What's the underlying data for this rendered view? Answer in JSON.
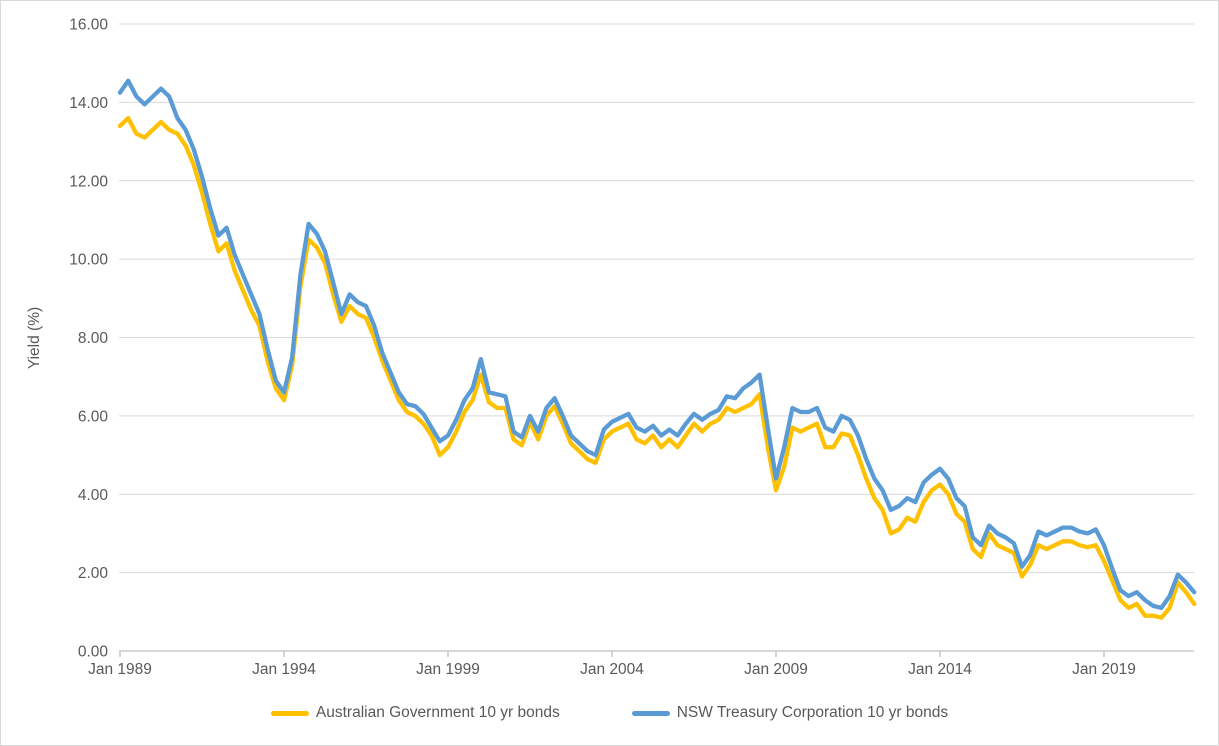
{
  "chart": {
    "title": "",
    "y_axis": {
      "title": "Yield (%)",
      "tick_labels": [
        "16.00",
        "14.00",
        "12.00",
        "10.00",
        "8.00",
        "6.00",
        "4.00",
        "2.00",
        "0.00"
      ],
      "tick_values": [
        16,
        14,
        12,
        10,
        8,
        6,
        4,
        2,
        0
      ],
      "min": 0,
      "max": 16,
      "step": 2
    },
    "x_axis": {
      "tick_labels": [
        "Jan 1989",
        "Jan 1994",
        "Jan 1999",
        "Jan 2004",
        "Jan 2009",
        "Jan 2014",
        "Jan 2019"
      ],
      "tick_years": [
        1989,
        1994,
        1999,
        2004,
        2009,
        2014,
        2019
      ]
    },
    "colors": {
      "gridline": "#d9d9d9",
      "axis_line": "#bfbfbf",
      "text": "#595959",
      "background": "#ffffff",
      "series_australian_government": "#FFC000",
      "series_nsw_tcorp": "#5B9BD5"
    },
    "legend": {
      "position": "bottom-center",
      "items": [
        {
          "label": "Australian Government 10 yr bonds",
          "color": "#FFC000"
        },
        {
          "label": "NSW Treasury Corporation 10 yr bonds",
          "color": "#5B9BD5"
        }
      ]
    }
  },
  "chart_data": {
    "type": "line",
    "title": "",
    "xlabel": "",
    "ylabel": "Yield (%)",
    "ylim": [
      0,
      16
    ],
    "grid": "horizontal",
    "legend_position": "bottom",
    "x_format": "decimal_year",
    "frequency": "quarterly",
    "x_range_dates": [
      "Jan 1989",
      "Oct 2021"
    ],
    "x": [
      1989.0,
      1989.25,
      1989.5,
      1989.75,
      1990.0,
      1990.25,
      1990.5,
      1990.75,
      1991.0,
      1991.25,
      1991.5,
      1991.75,
      1992.0,
      1992.25,
      1992.5,
      1992.75,
      1993.0,
      1993.25,
      1993.5,
      1993.75,
      1994.0,
      1994.25,
      1994.5,
      1994.75,
      1995.0,
      1995.25,
      1995.5,
      1995.75,
      1996.0,
      1996.25,
      1996.5,
      1996.75,
      1997.0,
      1997.25,
      1997.5,
      1997.75,
      1998.0,
      1998.25,
      1998.5,
      1998.75,
      1999.0,
      1999.25,
      1999.5,
      1999.75,
      2000.0,
      2000.25,
      2000.5,
      2000.75,
      2001.0,
      2001.25,
      2001.5,
      2001.75,
      2002.0,
      2002.25,
      2002.5,
      2002.75,
      2003.0,
      2003.25,
      2003.5,
      2003.75,
      2004.0,
      2004.25,
      2004.5,
      2004.75,
      2005.0,
      2005.25,
      2005.5,
      2005.75,
      2006.0,
      2006.25,
      2006.5,
      2006.75,
      2007.0,
      2007.25,
      2007.5,
      2007.75,
      2008.0,
      2008.25,
      2008.5,
      2008.75,
      2009.0,
      2009.25,
      2009.5,
      2009.75,
      2010.0,
      2010.25,
      2010.5,
      2010.75,
      2011.0,
      2011.25,
      2011.5,
      2011.75,
      2012.0,
      2012.25,
      2012.5,
      2012.75,
      2013.0,
      2013.25,
      2013.5,
      2013.75,
      2014.0,
      2014.25,
      2014.5,
      2014.75,
      2015.0,
      2015.25,
      2015.5,
      2015.75,
      2016.0,
      2016.25,
      2016.5,
      2016.75,
      2017.0,
      2017.25,
      2017.5,
      2017.75,
      2018.0,
      2018.25,
      2018.5,
      2018.75,
      2019.0,
      2019.25,
      2019.5,
      2019.75,
      2020.0,
      2020.25,
      2020.5,
      2020.75,
      2021.0,
      2021.25,
      2021.5,
      2021.75
    ],
    "series": [
      {
        "name": "Australian Government 10 yr bonds",
        "color": "#FFC000",
        "values": [
          13.4,
          13.6,
          13.2,
          13.1,
          13.3,
          13.5,
          13.3,
          13.2,
          12.9,
          12.4,
          11.7,
          10.9,
          10.2,
          10.4,
          9.7,
          9.2,
          8.7,
          8.3,
          7.4,
          6.7,
          6.4,
          7.3,
          9.3,
          10.5,
          10.3,
          9.9,
          9.1,
          8.4,
          8.8,
          8.6,
          8.5,
          8.0,
          7.4,
          6.9,
          6.4,
          6.1,
          6.0,
          5.8,
          5.5,
          5.0,
          5.2,
          5.6,
          6.1,
          6.4,
          7.05,
          6.35,
          6.2,
          6.2,
          5.4,
          5.25,
          5.85,
          5.4,
          6.0,
          6.25,
          5.8,
          5.3,
          5.1,
          4.9,
          4.8,
          5.4,
          5.6,
          5.7,
          5.8,
          5.4,
          5.3,
          5.5,
          5.2,
          5.4,
          5.2,
          5.5,
          5.8,
          5.6,
          5.8,
          5.9,
          6.2,
          6.1,
          6.2,
          6.3,
          6.55,
          5.2,
          4.1,
          4.7,
          5.7,
          5.6,
          5.7,
          5.8,
          5.2,
          5.2,
          5.55,
          5.5,
          5.0,
          4.4,
          3.9,
          3.6,
          3.0,
          3.1,
          3.4,
          3.3,
          3.8,
          4.1,
          4.25,
          4.0,
          3.5,
          3.3,
          2.6,
          2.4,
          3.0,
          2.7,
          2.6,
          2.5,
          1.9,
          2.2,
          2.7,
          2.6,
          2.7,
          2.8,
          2.8,
          2.7,
          2.65,
          2.7,
          2.3,
          1.8,
          1.3,
          1.1,
          1.2,
          0.9,
          0.9,
          0.85,
          1.1,
          1.75,
          1.5,
          1.2
        ]
      },
      {
        "name": "NSW Treasury Corporation 10 yr bonds",
        "color": "#5B9BD5",
        "values": [
          14.25,
          14.55,
          14.15,
          13.95,
          14.15,
          14.35,
          14.15,
          13.6,
          13.3,
          12.8,
          12.1,
          11.3,
          10.6,
          10.8,
          10.1,
          9.6,
          9.1,
          8.6,
          7.7,
          6.9,
          6.6,
          7.5,
          9.6,
          10.9,
          10.65,
          10.2,
          9.4,
          8.6,
          9.1,
          8.9,
          8.8,
          8.3,
          7.6,
          7.1,
          6.6,
          6.3,
          6.25,
          6.05,
          5.7,
          5.35,
          5.5,
          5.9,
          6.4,
          6.7,
          7.45,
          6.6,
          6.55,
          6.5,
          5.6,
          5.45,
          6.0,
          5.6,
          6.2,
          6.45,
          6.0,
          5.5,
          5.3,
          5.1,
          5.0,
          5.65,
          5.85,
          5.95,
          6.05,
          5.7,
          5.6,
          5.75,
          5.5,
          5.65,
          5.5,
          5.8,
          6.05,
          5.9,
          6.05,
          6.15,
          6.5,
          6.45,
          6.7,
          6.85,
          7.05,
          5.7,
          4.4,
          5.2,
          6.2,
          6.1,
          6.1,
          6.2,
          5.7,
          5.6,
          6.0,
          5.9,
          5.5,
          4.9,
          4.4,
          4.1,
          3.6,
          3.7,
          3.9,
          3.8,
          4.3,
          4.5,
          4.65,
          4.4,
          3.9,
          3.7,
          2.9,
          2.7,
          3.2,
          3.0,
          2.9,
          2.75,
          2.15,
          2.45,
          3.05,
          2.95,
          3.05,
          3.15,
          3.15,
          3.05,
          3.0,
          3.1,
          2.7,
          2.1,
          1.55,
          1.4,
          1.5,
          1.3,
          1.15,
          1.1,
          1.4,
          1.95,
          1.75,
          1.5
        ]
      }
    ]
  }
}
